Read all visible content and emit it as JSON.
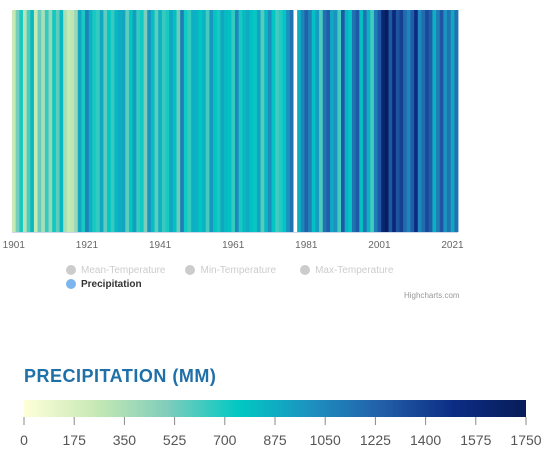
{
  "chart_data": {
    "type": "heatmap",
    "subtype": "climate-stripes",
    "title": "",
    "series": [
      {
        "name": "Mean-Temperature",
        "visible": false
      },
      {
        "name": "Min-Temperature",
        "visible": false
      },
      {
        "name": "Max-Temperature",
        "visible": false
      },
      {
        "name": "Precipitation",
        "visible": true
      }
    ],
    "x_start": 1901,
    "x_end": 2022,
    "x_ticks": [
      "1901",
      "1921",
      "1941",
      "1961",
      "1981",
      "2001",
      "2021"
    ],
    "values": [
      250,
      520,
      700,
      300,
      600,
      820,
      250,
      550,
      350,
      650,
      420,
      720,
      560,
      820,
      350,
      250,
      280,
      400,
      900,
      700,
      1080,
      850,
      700,
      650,
      900,
      560,
      760,
      640,
      820,
      880,
      900,
      560,
      760,
      950,
      650,
      720,
      500,
      980,
      800,
      560,
      850,
      640,
      700,
      900,
      780,
      540,
      1100,
      720,
      650,
      860,
      850,
      760,
      850,
      620,
      980,
      760,
      700,
      900,
      820,
      780,
      650,
      1050,
      700,
      820,
      880,
      780,
      740,
      920,
      580,
      820,
      1020,
      760,
      620,
      680,
      760,
      1000,
      1150,
      0,
      860,
      1060,
      1240,
      1080,
      780,
      950,
      600,
      1150,
      1250,
      900,
      1000,
      620,
      1280,
      860,
      760,
      1150,
      1280,
      780,
      1150,
      860,
      620,
      1100,
      1280,
      1600,
      1730,
      1280,
      1560,
      1300,
      1400,
      1180,
      1060,
      1250,
      1500,
      1050,
      1180,
      1350,
      1250,
      860,
      1100,
      1300,
      1000,
      1150,
      900,
      1150
    ]
  },
  "legend": {
    "items": [
      {
        "label": "Mean-Temperature",
        "active": false
      },
      {
        "label": "Min-Temperature",
        "active": false
      },
      {
        "label": "Max-Temperature",
        "active": false
      },
      {
        "label": "Precipitation",
        "active": true
      }
    ]
  },
  "credits": "Highcharts.com",
  "color_scale": {
    "title": "PRECIPITATION (MM)",
    "min": 0,
    "max": 1750,
    "labels": [
      "0",
      "175",
      "350",
      "525",
      "700",
      "875",
      "1050",
      "1225",
      "1400",
      "1575",
      "1750"
    ],
    "stops": [
      "#ffffd9",
      "#c7e9b4",
      "#7fcdbb",
      "#00c8c3",
      "#1d91c0",
      "#225ea8",
      "#0c2c84",
      "#081d58"
    ]
  }
}
